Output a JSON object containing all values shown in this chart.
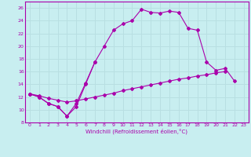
{
  "bg_color": "#c8eef0",
  "grid_color": "#b8dfe2",
  "line_color": "#aa00aa",
  "xlim": [
    -0.5,
    23.5
  ],
  "ylim": [
    8,
    27
  ],
  "xticks": [
    0,
    1,
    2,
    3,
    4,
    5,
    6,
    7,
    8,
    9,
    10,
    11,
    12,
    13,
    14,
    15,
    16,
    17,
    18,
    19,
    20,
    21,
    22,
    23
  ],
  "yticks": [
    8,
    10,
    12,
    14,
    16,
    18,
    20,
    22,
    24,
    26
  ],
  "xlabel": "Windchill (Refroidissement éolien,°C)",
  "line1": {
    "x": [
      0,
      1,
      2,
      3,
      4,
      5,
      6,
      7,
      8,
      9,
      10,
      11,
      12,
      13,
      14,
      15,
      16,
      17,
      18,
      19,
      20,
      21,
      22,
      23
    ],
    "y": [
      12.5,
      12.0,
      11.0,
      10.5,
      9.0,
      10.5,
      14.0,
      17.5,
      20.0,
      22.5,
      23.5,
      24.0,
      25.8,
      25.3,
      25.2,
      25.5,
      25.3,
      22.8,
      22.5,
      17.5,
      16.2,
      16.5,
      14.5,
      null
    ]
  },
  "line2": {
    "x": [
      0,
      1,
      2,
      3,
      4,
      5,
      6,
      7
    ],
    "y": [
      12.5,
      12.0,
      11.0,
      10.5,
      9.0,
      11.0,
      14.2,
      17.5
    ]
  },
  "line3": {
    "x": [
      0,
      1,
      2,
      3,
      4,
      5,
      6,
      7,
      8,
      9,
      10,
      11,
      12,
      13,
      14,
      15,
      16,
      17,
      18,
      19,
      20,
      21,
      22,
      23
    ],
    "y": [
      12.5,
      12.2,
      11.8,
      11.5,
      11.2,
      11.4,
      11.7,
      12.0,
      12.3,
      12.6,
      13.0,
      13.3,
      13.6,
      13.9,
      14.2,
      14.5,
      14.8,
      15.0,
      15.3,
      15.5,
      15.8,
      16.0,
      null,
      null
    ]
  }
}
